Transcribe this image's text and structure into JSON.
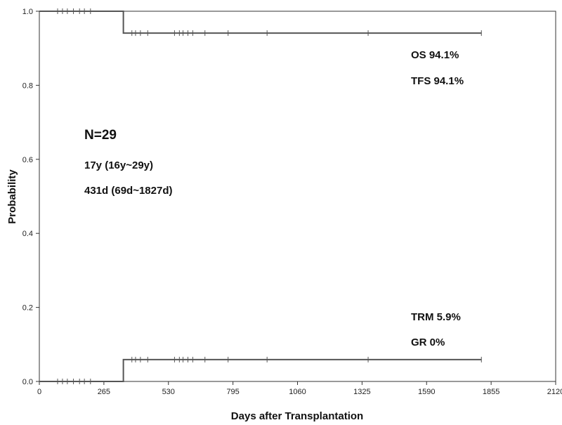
{
  "chart_data": {
    "type": "line",
    "title": "",
    "xlabel": "Days after Transplantation",
    "ylabel": "Probability",
    "xlim": [
      0,
      2120
    ],
    "ylim": [
      0,
      1.0
    ],
    "xticks": [
      0,
      265,
      530,
      795,
      1060,
      1325,
      1590,
      1855,
      2120
    ],
    "yticks": [
      0.0,
      0.2,
      0.4,
      0.6,
      0.8,
      1.0
    ],
    "xtick_labels": [
      "0",
      "265",
      "530",
      "795",
      "1060",
      "1325",
      "1590",
      "1855",
      "2120"
    ],
    "ytick_labels": [
      "0.0",
      "0.2",
      "0.4",
      "0.6",
      "0.8",
      "1.0"
    ],
    "grid": false,
    "step": true,
    "series": [
      {
        "points": [
          [
            0,
            1.0
          ],
          [
            345,
            1.0
          ],
          [
            345,
            0.941
          ],
          [
            1815,
            0.941
          ]
        ],
        "censor_x": [
          75,
          95,
          115,
          140,
          165,
          185,
          210,
          380,
          395,
          415,
          445,
          555,
          575,
          590,
          610,
          630,
          680,
          775,
          935,
          1350,
          1815
        ],
        "color": "#555555"
      },
      {
        "points": [
          [
            0,
            0.0
          ],
          [
            345,
            0.0
          ],
          [
            345,
            0.059
          ],
          [
            1815,
            0.059
          ]
        ],
        "censor_x": [
          75,
          95,
          115,
          140,
          165,
          185,
          210,
          380,
          395,
          415,
          445,
          555,
          575,
          590,
          610,
          630,
          680,
          775,
          935,
          1350,
          1815
        ],
        "color": "#555555"
      }
    ],
    "annotations": {
      "os": "OS 94.1%",
      "tfs": "TFS 94.1%",
      "trm": "TRM 5.9%",
      "gr": "GR 0%",
      "n": "N=29",
      "age": "17y (16y~29y)",
      "followup": "431d (69d~1827d)"
    }
  }
}
